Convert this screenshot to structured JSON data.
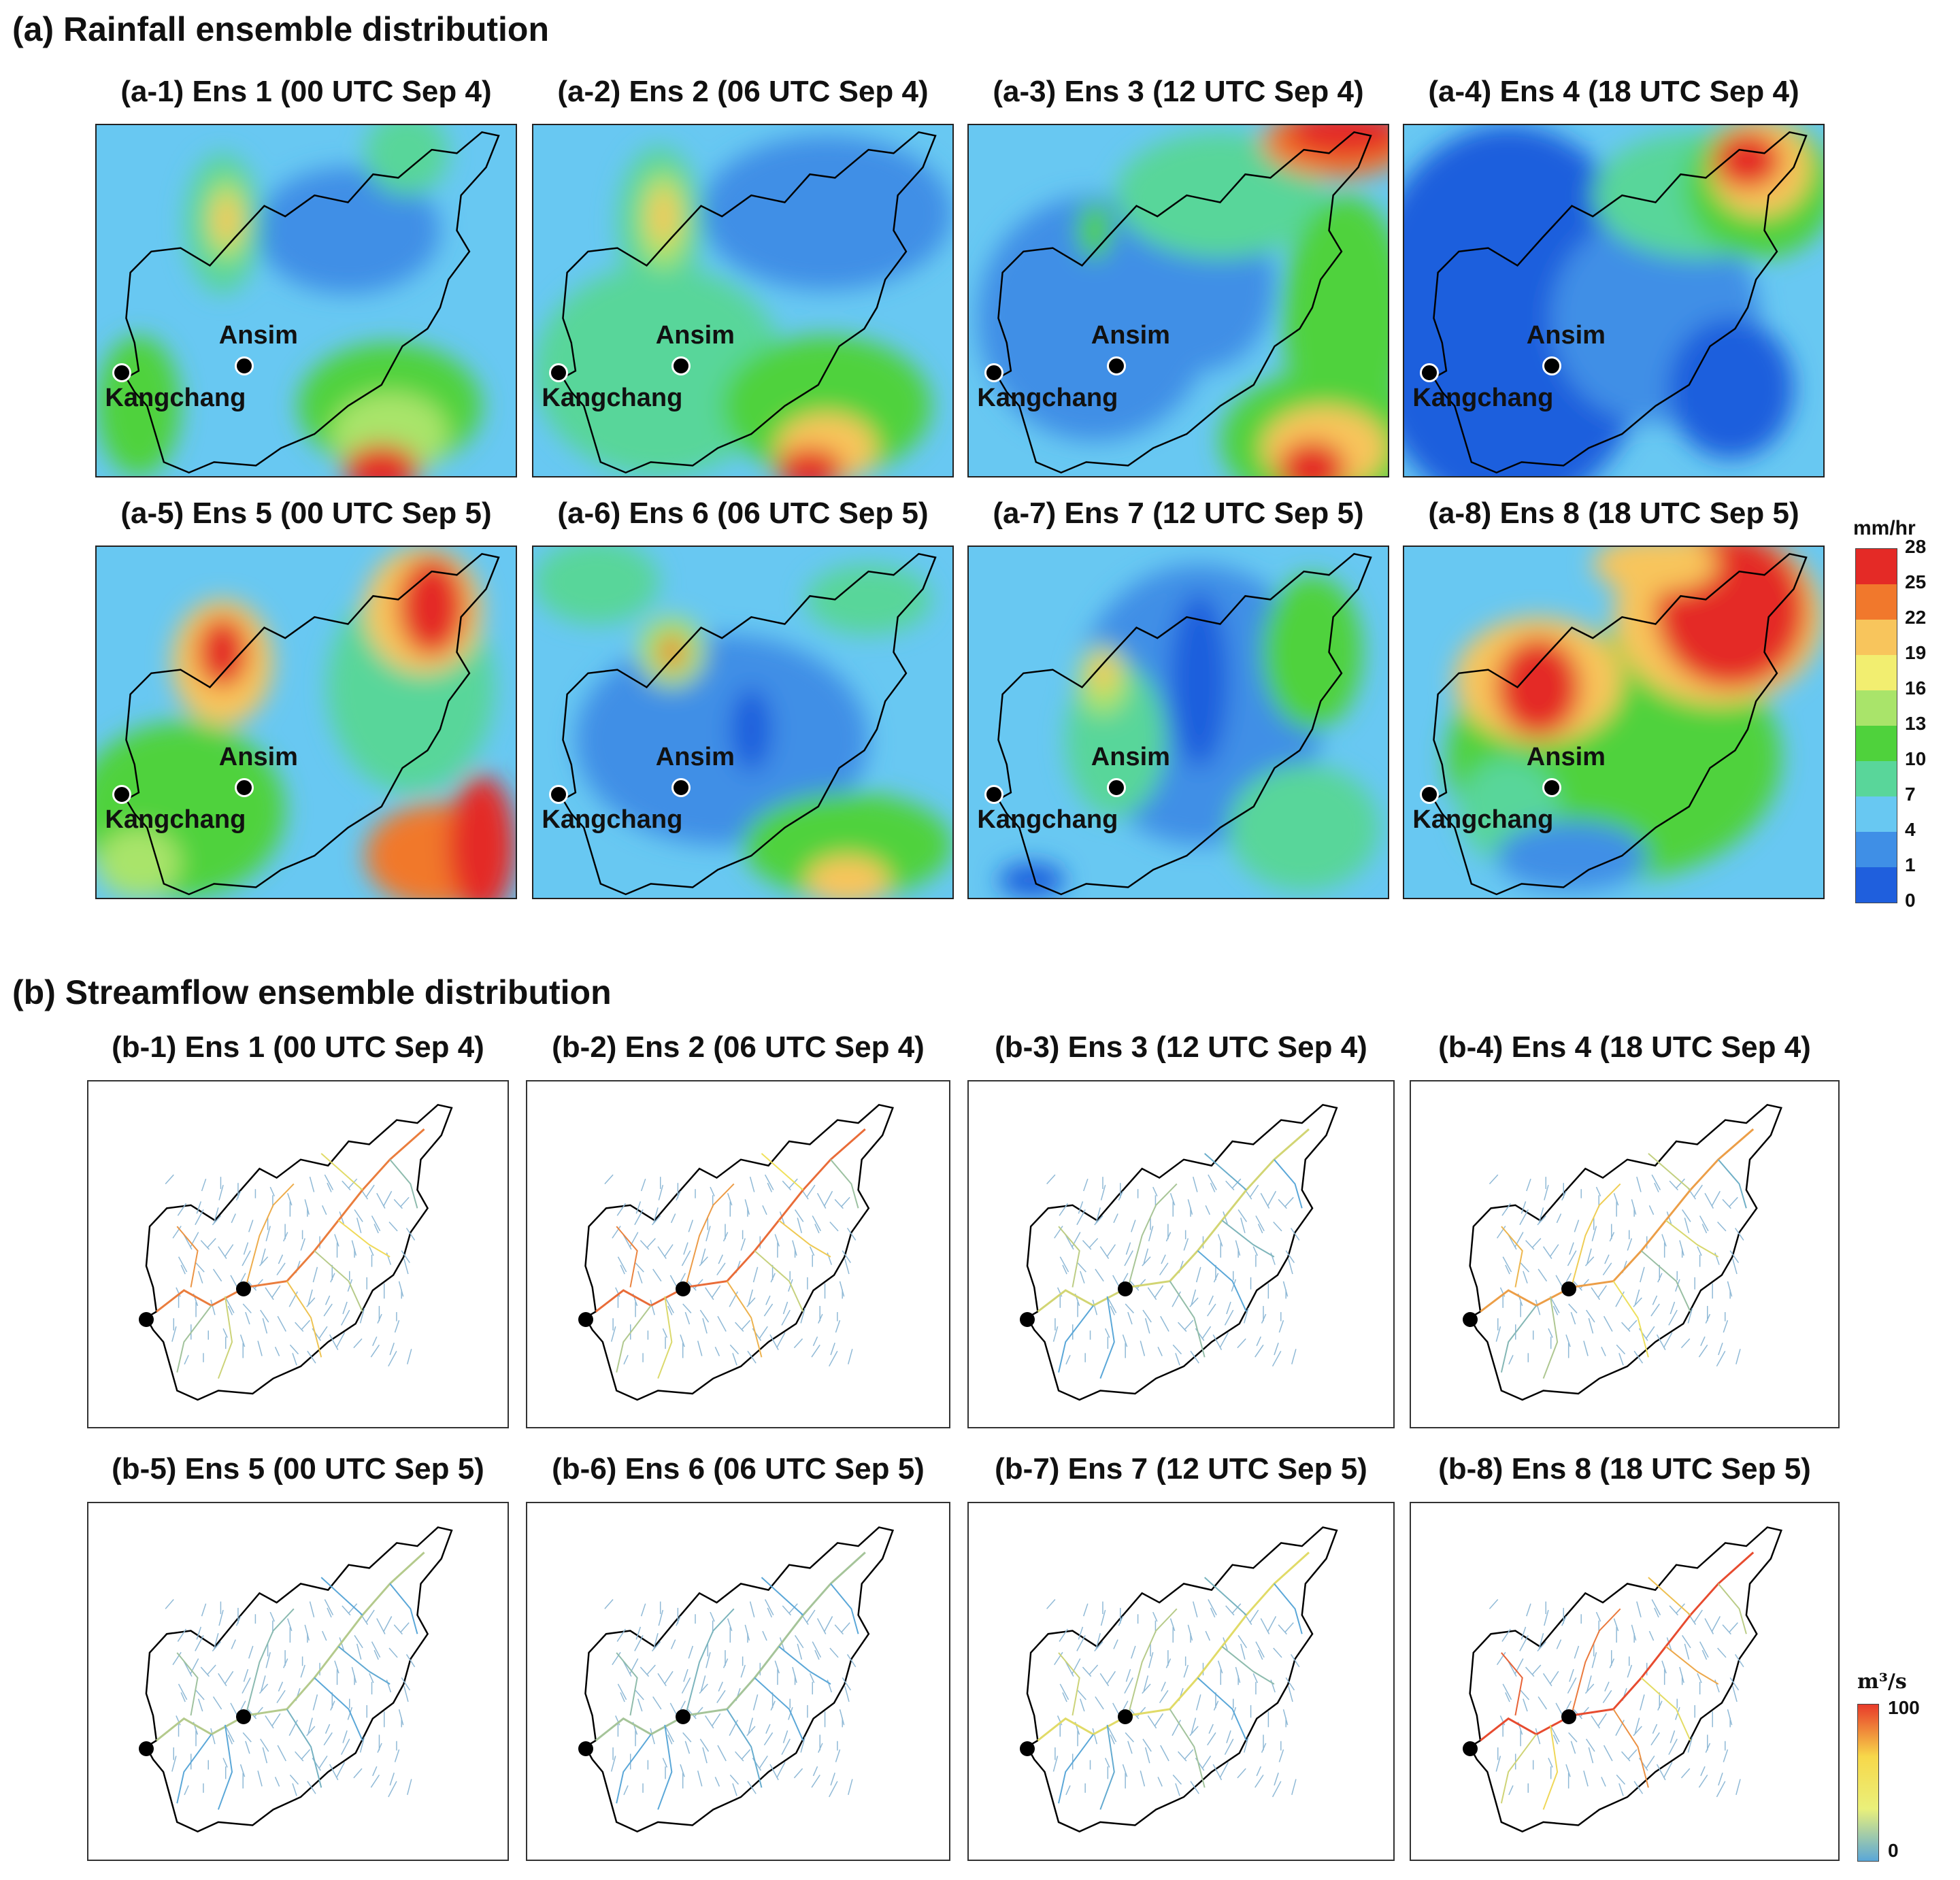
{
  "section_a": {
    "title": "(a) Rainfall ensemble distribution",
    "panels": [
      {
        "title": "(a-1) Ens 1 (00 UTC Sep 4)"
      },
      {
        "title": "(a-2) Ens 2 (06 UTC Sep 4)"
      },
      {
        "title": "(a-3) Ens 3 (12 UTC Sep 4)"
      },
      {
        "title": "(a-4) Ens 4 (18 UTC Sep 4)"
      },
      {
        "title": "(a-5) Ens 5 (00 UTC Sep 5)"
      },
      {
        "title": "(a-6) Ens 6 (06 UTC Sep 5)"
      },
      {
        "title": "(a-7) Ens 7 (12 UTC Sep 5)"
      },
      {
        "title": "(a-8) Ens 8 (18 UTC Sep 5)"
      }
    ],
    "station_labels": {
      "ansim": "Ansim",
      "kangchang": "Kangchang"
    },
    "colorbar": {
      "unit": "mm/hr",
      "ticks": [
        "28",
        "25",
        "22",
        "19",
        "16",
        "13",
        "10",
        "7",
        "4",
        "1",
        "0"
      ],
      "colors": [
        "#e42a26",
        "#f1782c",
        "#f8c55c",
        "#f2ee70",
        "#a9e46a",
        "#4fd23c",
        "#59d69a",
        "#68c8f2",
        "#3f8fe6",
        "#1f5fdd"
      ]
    }
  },
  "section_b": {
    "title": "(b) Streamflow ensemble distribution",
    "panels": [
      {
        "title": "(b-1) Ens 1 (00 UTC Sep 4)"
      },
      {
        "title": "(b-2) Ens 2 (06 UTC Sep 4)"
      },
      {
        "title": "(b-3) Ens 3 (12 UTC Sep 4)"
      },
      {
        "title": "(b-4) Ens 4 (18 UTC Sep 4)"
      },
      {
        "title": "(b-5) Ens 5 (00 UTC Sep 5)"
      },
      {
        "title": "(b-6) Ens 6 (06 UTC Sep 5)"
      },
      {
        "title": "(b-7) Ens 7 (12 UTC Sep 5)"
      },
      {
        "title": "(b-8) Ens 8 (18 UTC Sep 5)"
      }
    ],
    "colorbar": {
      "unit": "m³/s",
      "ticks": [
        "100",
        "0"
      ],
      "colors": [
        "#e83a2a",
        "#f7d84a",
        "#eaf07a",
        "#5aa7d8"
      ]
    }
  }
}
